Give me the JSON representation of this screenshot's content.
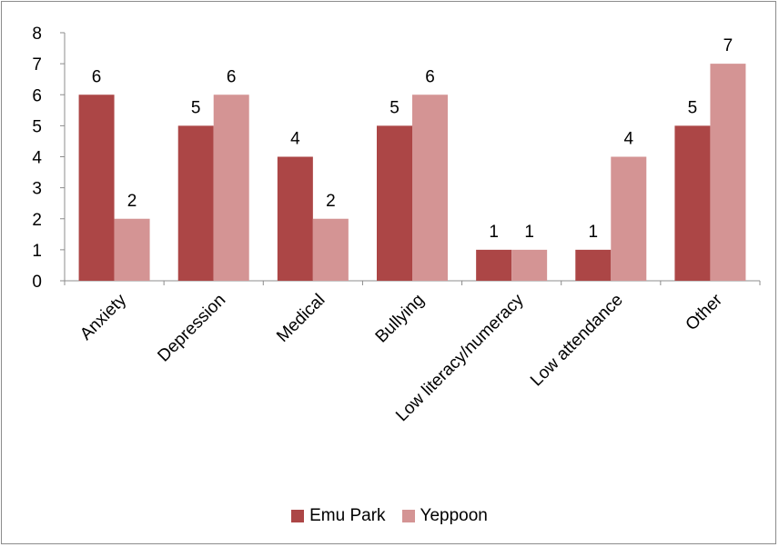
{
  "chart_data": {
    "type": "bar",
    "categories": [
      "Anxiety",
      "Depression",
      "Medical",
      "Bullying",
      "Low literacy/numeracy",
      "Low attendance",
      "Other"
    ],
    "series": [
      {
        "name": "Emu Park",
        "color": "#ac4646",
        "values": [
          6,
          5,
          4,
          5,
          1,
          1,
          5
        ]
      },
      {
        "name": "Yeppoon",
        "color": "#d49494",
        "values": [
          2,
          6,
          2,
          6,
          1,
          4,
          7
        ]
      }
    ],
    "ylim": [
      0,
      8
    ],
    "yticks": [
      0,
      1,
      2,
      3,
      4,
      5,
      6,
      7,
      8
    ],
    "title": "",
    "xlabel": "",
    "ylabel": "",
    "grid": false,
    "legend_position": "bottom",
    "data_labels": true
  }
}
